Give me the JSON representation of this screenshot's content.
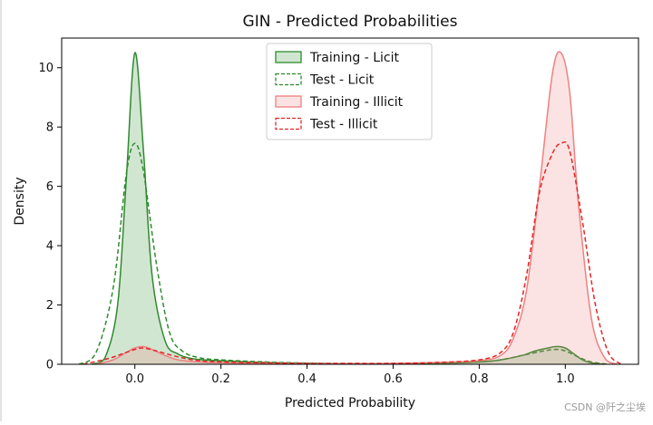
{
  "chart_data": {
    "type": "area",
    "title": "GIN - Predicted Probabilities",
    "xlabel": "Predicted Probability",
    "ylabel": "Density",
    "xlim": [
      -0.17,
      1.17
    ],
    "ylim": [
      0,
      11
    ],
    "xticks": [
      0.0,
      0.2,
      0.4,
      0.6,
      0.8,
      1.0
    ],
    "xtick_labels": [
      "0.0",
      "0.2",
      "0.4",
      "0.6",
      "0.8",
      "1.0"
    ],
    "yticks": [
      0,
      2,
      4,
      6,
      8,
      10
    ],
    "ytick_labels": [
      "0",
      "2",
      "4",
      "6",
      "8",
      "10"
    ],
    "legend_position": "top-center",
    "grid": false,
    "series": [
      {
        "name": "Training - Licit",
        "color": "#2e8b2e",
        "linestyle": "solid",
        "filled": true,
        "x": [
          -0.1,
          -0.07,
          -0.04,
          -0.02,
          0.0,
          0.02,
          0.04,
          0.07,
          0.1,
          0.13,
          0.16,
          0.2,
          0.3,
          0.4,
          0.5,
          0.6,
          0.7,
          0.8,
          0.85,
          0.9,
          0.93,
          0.96,
          0.98,
          1.0,
          1.02,
          1.04,
          1.06,
          1.09
        ],
        "values": [
          0.0,
          0.2,
          2.0,
          6.2,
          10.5,
          7.2,
          3.0,
          0.8,
          0.35,
          0.2,
          0.15,
          0.12,
          0.06,
          0.03,
          0.02,
          0.02,
          0.03,
          0.08,
          0.15,
          0.3,
          0.45,
          0.55,
          0.6,
          0.55,
          0.35,
          0.15,
          0.05,
          0.0
        ]
      },
      {
        "name": "Test - Licit",
        "color": "#2e8b2e",
        "linestyle": "dashed",
        "filled": false,
        "x": [
          -0.13,
          -0.09,
          -0.05,
          -0.02,
          0.0,
          0.02,
          0.05,
          0.08,
          0.11,
          0.15,
          0.2,
          0.3,
          0.4,
          0.5,
          0.6,
          0.7,
          0.8,
          0.85,
          0.9,
          0.95,
          0.98,
          1.0,
          1.03,
          1.06,
          1.1
        ],
        "values": [
          0.0,
          0.4,
          2.6,
          6.4,
          7.45,
          6.5,
          3.4,
          1.1,
          0.45,
          0.22,
          0.15,
          0.08,
          0.04,
          0.02,
          0.02,
          0.03,
          0.08,
          0.15,
          0.3,
          0.45,
          0.5,
          0.45,
          0.25,
          0.08,
          0.0
        ]
      },
      {
        "name": "Training - Illicit",
        "color": "#f08080",
        "linestyle": "solid",
        "filled": true,
        "x": [
          -0.09,
          -0.05,
          -0.02,
          0.0,
          0.02,
          0.04,
          0.07,
          0.1,
          0.15,
          0.2,
          0.3,
          0.4,
          0.5,
          0.6,
          0.7,
          0.8,
          0.85,
          0.88,
          0.91,
          0.94,
          0.97,
          0.99,
          1.01,
          1.03,
          1.06,
          1.09,
          1.12
        ],
        "values": [
          0.0,
          0.15,
          0.4,
          0.55,
          0.6,
          0.5,
          0.3,
          0.15,
          0.08,
          0.05,
          0.03,
          0.02,
          0.02,
          0.03,
          0.06,
          0.12,
          0.3,
          0.9,
          2.5,
          6.0,
          9.8,
          10.5,
          9.2,
          5.5,
          1.6,
          0.25,
          0.0
        ]
      },
      {
        "name": "Test - Illicit",
        "color": "#e32626",
        "linestyle": "dashed",
        "filled": false,
        "x": [
          -0.12,
          -0.06,
          -0.02,
          0.0,
          0.02,
          0.05,
          0.1,
          0.15,
          0.2,
          0.3,
          0.4,
          0.5,
          0.6,
          0.7,
          0.8,
          0.85,
          0.88,
          0.91,
          0.94,
          0.97,
          0.99,
          1.01,
          1.04,
          1.07,
          1.1,
          1.13
        ],
        "values": [
          0.0,
          0.2,
          0.4,
          0.5,
          0.55,
          0.45,
          0.25,
          0.12,
          0.08,
          0.05,
          0.03,
          0.03,
          0.03,
          0.06,
          0.15,
          0.4,
          1.1,
          3.0,
          5.8,
          7.1,
          7.45,
          7.2,
          4.8,
          2.0,
          0.4,
          0.0
        ]
      }
    ]
  },
  "watermark": "CSDN @阡之尘埃"
}
